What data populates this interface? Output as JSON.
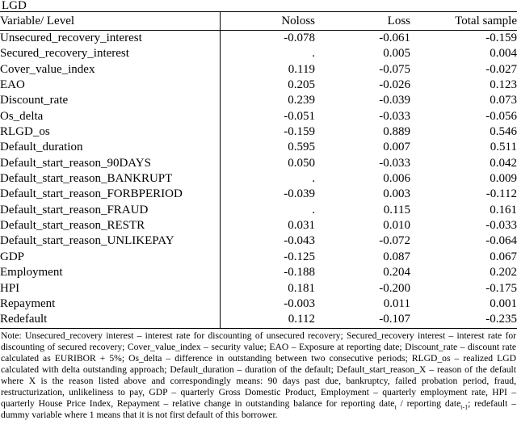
{
  "page": {
    "title": "LGD"
  },
  "table": {
    "columns": [
      "Variable/ Level",
      "Noloss",
      "Loss",
      "Total sample"
    ],
    "rows": [
      [
        "Unsecured_recovery_interest",
        "-0.078",
        "-0.061",
        "-0.159"
      ],
      [
        "Secured_recovery_interest",
        ".",
        "0.005",
        "0.004"
      ],
      [
        "Cover_value_index",
        "0.119",
        "-0.075",
        "-0.027"
      ],
      [
        "EAO",
        "0.205",
        "-0.026",
        "0.123"
      ],
      [
        "Discount_rate",
        "0.239",
        "-0.039",
        "0.073"
      ],
      [
        "Os_delta",
        "-0.051",
        "-0.033",
        "-0.056"
      ],
      [
        "RLGD_os",
        "-0.159",
        "0.889",
        "0.546"
      ],
      [
        "Default_duration",
        "0.595",
        "0.007",
        "0.511"
      ],
      [
        "Default_start_reason_90DAYS",
        "0.050",
        "-0.033",
        "0.042"
      ],
      [
        "Default_start_reason_BANKRUPT",
        ".",
        "0.006",
        "0.009"
      ],
      [
        "Default_start_reason_FORBPERIOD",
        "-0.039",
        "0.003",
        "-0.112"
      ],
      [
        "Default_start_reason_FRAUD",
        ".",
        "0.115",
        "0.161"
      ],
      [
        "Default_start_reason_RESTR",
        "0.031",
        "0.010",
        "-0.033"
      ],
      [
        "Default_start_reason_UNLIKEPAY",
        "-0.043",
        "-0.072",
        "-0.064"
      ],
      [
        "GDP",
        "-0.125",
        "0.087",
        "0.067"
      ],
      [
        "Employment",
        "-0.188",
        "0.204",
        "0.202"
      ],
      [
        "HPI",
        "0.181",
        "-0.200",
        "-0.175"
      ],
      [
        "Repayment",
        "-0.003",
        "0.011",
        "0.001"
      ],
      [
        "Redefault",
        "0.112",
        "-0.107",
        "-0.235"
      ]
    ]
  },
  "note": {
    "segments": [
      {
        "text": "Note: Unsecured_recovery interest – interest rate for discounting of unsecured recovery; Secured_recovery interest – interest rate for discounting of secured recovery; Cover_value_index – security value; EAO – Exposure at reporting date; Discount_rate – discount rate calculated as EURIBOR + 5%; Os_delta – difference in outstanding between two consecutive periods; RLGD_os – realized LGD calculated with delta outstanding approach; Default_duration – duration of the default; Default_start_reason_X – reason of the default where X is the reason listed above and correspondingly means: 90 days past due, bankruptcy, failed probation period, fraud, restructurization, unlikeliness to pay, GDP – quarterly Gross Domestic Product, Employment – quarterly employment rate, HPI – quarterly House Price Index, Repayment – relative change in outstanding balance for reporting date",
        "sub": false
      },
      {
        "text": "t",
        "sub": true
      },
      {
        "text": " / reporting date",
        "sub": false
      },
      {
        "text": "t-1",
        "sub": true
      },
      {
        "text": "; redefault – dummy variable where 1 means that it is not first default of this borrower.",
        "sub": false
      }
    ]
  }
}
